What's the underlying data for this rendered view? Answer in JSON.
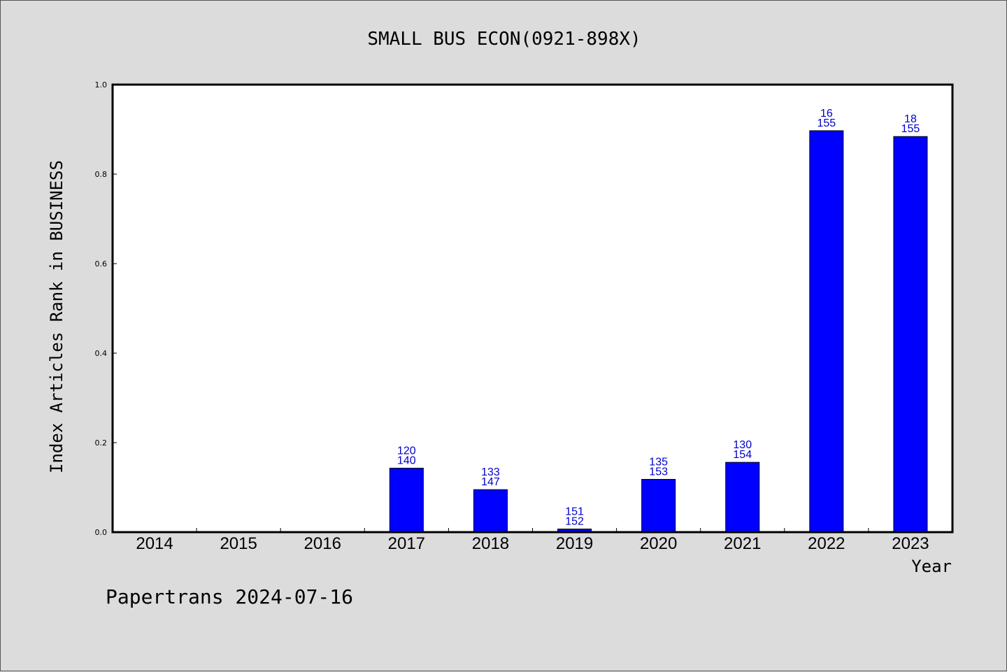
{
  "chart_data": {
    "type": "bar",
    "title": "SMALL BUS ECON(0921-898X)",
    "xlabel": "Year",
    "ylabel": "Index Articles Rank in BUSINESS",
    "ylim": [
      0,
      1.0
    ],
    "yticks": [
      "0.0",
      "0.2",
      "0.4",
      "0.6",
      "0.8",
      "1.0"
    ],
    "categories": [
      "2014",
      "2015",
      "2016",
      "2017",
      "2018",
      "2019",
      "2020",
      "2021",
      "2022",
      "2023"
    ],
    "values": [
      0,
      0,
      0,
      0.143,
      0.095,
      0.007,
      0.118,
      0.156,
      0.897,
      0.884
    ],
    "labels": [
      null,
      null,
      null,
      [
        "120",
        "140"
      ],
      [
        "133",
        "147"
      ],
      [
        "151",
        "152"
      ],
      [
        "135",
        "153"
      ],
      [
        "130",
        "154"
      ],
      [
        "16",
        "155"
      ],
      [
        "18",
        "155"
      ]
    ],
    "bar_color": "#0000ff",
    "label_color": "#0000cc",
    "grid": false,
    "footer": "Papertrans 2024-07-16"
  }
}
